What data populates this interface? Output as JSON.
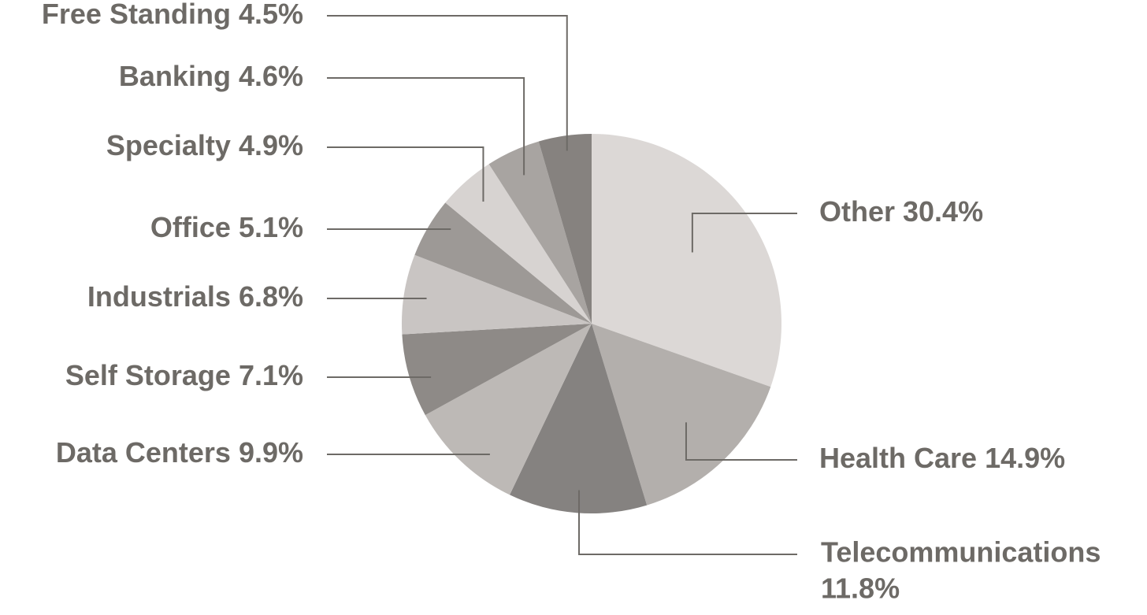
{
  "chart_data": {
    "type": "pie",
    "categories": [
      "Other",
      "Health Care",
      "Telecommunications",
      "Data Centers",
      "Self Storage",
      "Industrials",
      "Office",
      "Specialty",
      "Banking",
      "Free Standing"
    ],
    "values": [
      30.4,
      14.9,
      11.8,
      9.9,
      7.1,
      6.8,
      5.1,
      4.9,
      4.6,
      4.5
    ],
    "value_labels": [
      "30.4%",
      "14.9%",
      "11.8%",
      "9.9%",
      "7.1%",
      "6.8%",
      "5.1%",
      "4.9%",
      "4.6%",
      "4.5%"
    ],
    "colors": [
      "#dcd8d6",
      "#b3afac",
      "#858280",
      "#bdb9b6",
      "#8e8a87",
      "#c9c5c3",
      "#9d9996",
      "#d7d3d1",
      "#a8a4a1",
      "#86827f"
    ]
  }
}
